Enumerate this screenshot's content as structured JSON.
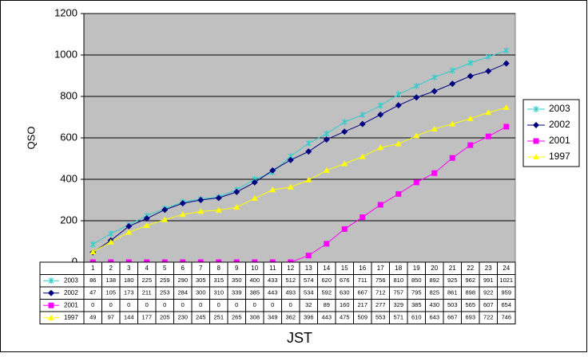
{
  "chart_data": {
    "type": "line",
    "x_label": "JST",
    "y_label": "QSO",
    "categories": [
      "1",
      "2",
      "3",
      "4",
      "5",
      "6",
      "7",
      "8",
      "9",
      "10",
      "11",
      "12",
      "13",
      "14",
      "15",
      "16",
      "17",
      "18",
      "19",
      "20",
      "21",
      "22",
      "23",
      "24"
    ],
    "series": [
      {
        "name": "2003",
        "color": "#33cccc",
        "marker": "star",
        "values": [
          86,
          138,
          180,
          225,
          259,
          290,
          305,
          315,
          350,
          400,
          433,
          512,
          574,
          620,
          676,
          711,
          756,
          810,
          850,
          892,
          925,
          962,
          991,
          1021
        ]
      },
      {
        "name": "2002",
        "color": "#000080",
        "marker": "diamond",
        "values": [
          47,
          105,
          173,
          211,
          253,
          284,
          300,
          310,
          339,
          385,
          443,
          493,
          534,
          592,
          630,
          667,
          712,
          757,
          795,
          825,
          861,
          898,
          922,
          959
        ]
      },
      {
        "name": "2001",
        "color": "#ff00ff",
        "marker": "square",
        "values": [
          0,
          0,
          0,
          0,
          0,
          0,
          0,
          0,
          0,
          0,
          0,
          0,
          32,
          89,
          160,
          217,
          277,
          329,
          385,
          430,
          503,
          565,
          607,
          654
        ]
      },
      {
        "name": "1997",
        "color": "#ffff00",
        "marker": "triangle",
        "values": [
          49,
          97,
          144,
          177,
          205,
          230,
          245,
          251,
          265,
          308,
          349,
          362,
          396,
          443,
          475,
          509,
          553,
          571,
          610,
          643,
          667,
          693,
          722,
          746
        ]
      }
    ],
    "ylim": [
      0,
      1200
    ],
    "yticks": [
      0,
      200,
      400,
      600,
      800,
      1000,
      1200
    ],
    "grid": true,
    "legend": "right",
    "data_table": true
  }
}
